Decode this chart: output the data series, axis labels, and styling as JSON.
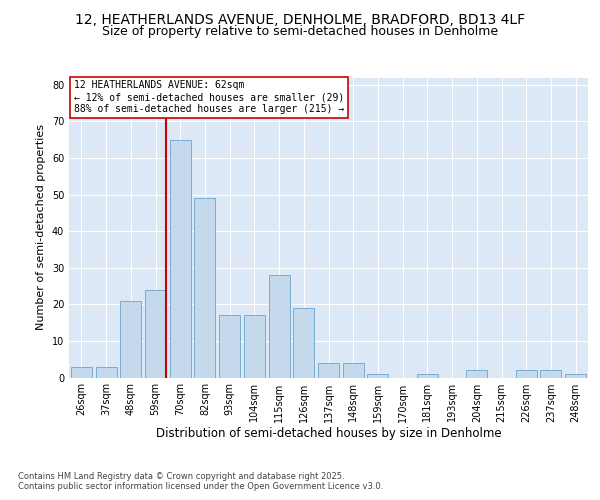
{
  "title": "12, HEATHERLANDS AVENUE, DENHOLME, BRADFORD, BD13 4LF",
  "subtitle": "Size of property relative to semi-detached houses in Denholme",
  "xlabel": "Distribution of semi-detached houses by size in Denholme",
  "ylabel": "Number of semi-detached properties",
  "categories": [
    "26sqm",
    "37sqm",
    "48sqm",
    "59sqm",
    "70sqm",
    "82sqm",
    "93sqm",
    "104sqm",
    "115sqm",
    "126sqm",
    "137sqm",
    "148sqm",
    "159sqm",
    "170sqm",
    "181sqm",
    "193sqm",
    "204sqm",
    "215sqm",
    "226sqm",
    "237sqm",
    "248sqm"
  ],
  "values": [
    3,
    3,
    21,
    24,
    65,
    49,
    17,
    17,
    28,
    19,
    4,
    4,
    1,
    0,
    1,
    0,
    2,
    0,
    2,
    2,
    1
  ],
  "bar_color": "#c5d9ed",
  "bar_edge_color": "#7aadd4",
  "ref_line_color": "#cc0000",
  "ref_bar_index": 3,
  "annotation_title": "12 HEATHERLANDS AVENUE: 62sqm",
  "annotation_line1": "← 12% of semi-detached houses are smaller (29)",
  "annotation_line2": "88% of semi-detached houses are larger (215) →",
  "annotation_box_facecolor": "#ffffff",
  "annotation_box_edgecolor": "#cc0000",
  "ylim": [
    0,
    82
  ],
  "yticks": [
    0,
    10,
    20,
    30,
    40,
    50,
    60,
    70,
    80
  ],
  "bg_color": "#dce8f5",
  "fig_bg_color": "#ffffff",
  "title_fontsize": 10,
  "subtitle_fontsize": 9,
  "ylabel_fontsize": 8,
  "xlabel_fontsize": 8.5,
  "tick_fontsize": 7,
  "annot_fontsize": 7,
  "footer_line1": "Contains HM Land Registry data © Crown copyright and database right 2025.",
  "footer_line2": "Contains public sector information licensed under the Open Government Licence v3.0.",
  "footer_fontsize": 6
}
